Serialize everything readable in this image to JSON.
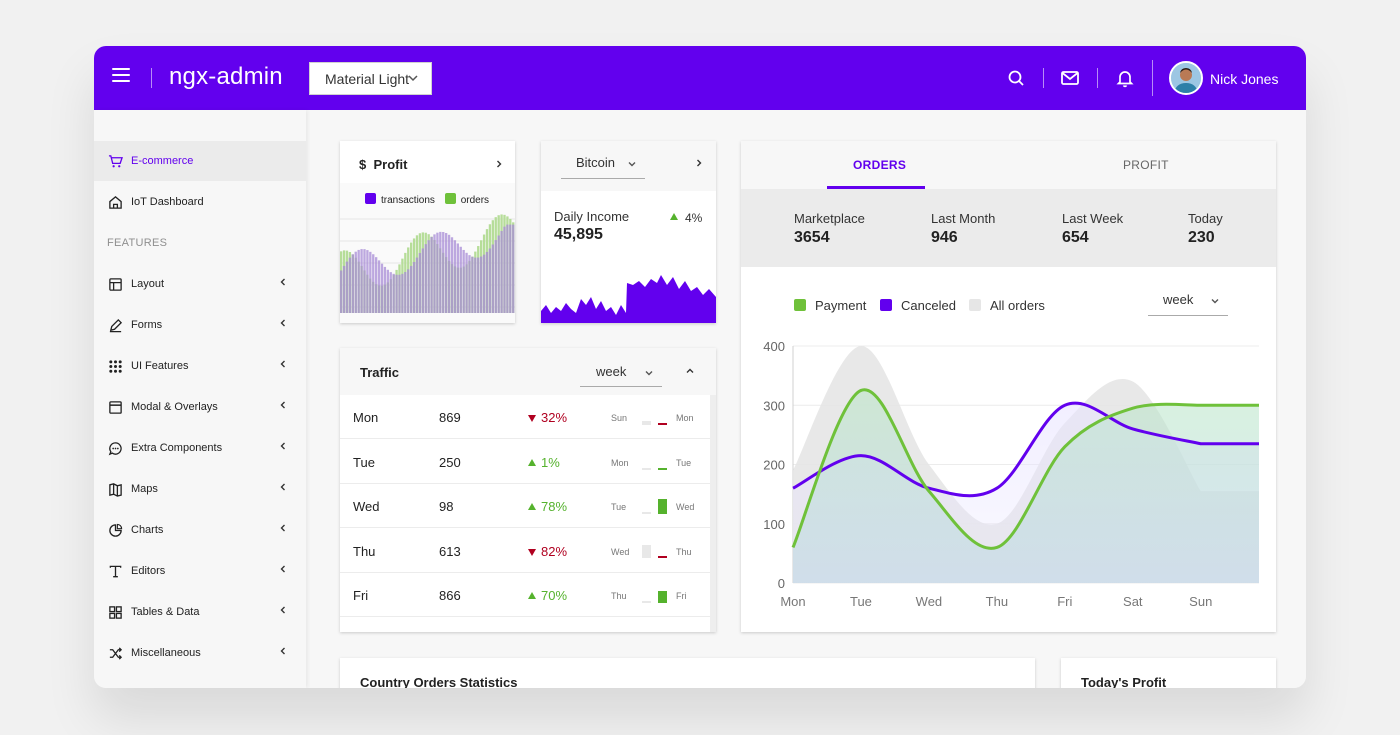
{
  "header": {
    "app_title": "ngx-admin",
    "theme_select_value": "Material Light",
    "user_name": "Nick Jones"
  },
  "sidebar": {
    "section_header": "FEATURES",
    "items": [
      {
        "label": "E-commerce",
        "icon": "cart-icon"
      },
      {
        "label": "IoT Dashboard",
        "icon": "home-icon"
      },
      {
        "label": "Layout",
        "icon": "layout-icon"
      },
      {
        "label": "Forms",
        "icon": "edit-icon"
      },
      {
        "label": "UI Features",
        "icon": "grid-icon"
      },
      {
        "label": "Modal & Overlays",
        "icon": "browser-icon"
      },
      {
        "label": "Extra Components",
        "icon": "message-circle-icon"
      },
      {
        "label": "Maps",
        "icon": "map-icon"
      },
      {
        "label": "Charts",
        "icon": "pie-chart-icon"
      },
      {
        "label": "Editors",
        "icon": "text-icon"
      },
      {
        "label": "Tables & Data",
        "icon": "table-icon"
      },
      {
        "label": "Miscellaneous",
        "icon": "shuffle-icon"
      }
    ]
  },
  "profit_card": {
    "currency_symbol": "$",
    "title": "Profit",
    "legend": [
      {
        "name": "transactions",
        "color": "#6200ee"
      },
      {
        "name": "orders",
        "color": "#6fc13a"
      }
    ]
  },
  "bitcoin_card": {
    "select_value": "Bitcoin",
    "income_label": "Daily Income",
    "income_value": "45,895",
    "change": "4%"
  },
  "traffic_card": {
    "title": "Traffic",
    "period": "week",
    "rows": [
      {
        "day": "Mon",
        "value": "869",
        "delta": "32%",
        "trend": "down",
        "prev": "Sun",
        "curr": "Mon",
        "level_prev": 0.25,
        "level_curr": 0.15
      },
      {
        "day": "Tue",
        "value": "250",
        "delta": "1%",
        "trend": "up",
        "prev": "Mon",
        "curr": "Tue",
        "level_prev": 0.1,
        "level_curr": 0.12
      },
      {
        "day": "Wed",
        "value": "98",
        "delta": "78%",
        "trend": "up",
        "prev": "Tue",
        "curr": "Wed",
        "level_prev": 0.15,
        "level_curr": 0.95
      },
      {
        "day": "Thu",
        "value": "613",
        "delta": "82%",
        "trend": "down",
        "prev": "Wed",
        "curr": "Thu",
        "level_prev": 0.85,
        "level_curr": 0.15
      },
      {
        "day": "Fri",
        "value": "866",
        "delta": "70%",
        "trend": "up",
        "prev": "Thu",
        "curr": "Fri",
        "level_prev": 0.15,
        "level_curr": 0.75
      }
    ]
  },
  "orders_card": {
    "tabs": [
      "ORDERS",
      "PROFIT"
    ],
    "active_tab": "ORDERS",
    "stats": [
      {
        "label": "Marketplace",
        "value": "3654"
      },
      {
        "label": "Last Month",
        "value": "946"
      },
      {
        "label": "Last Week",
        "value": "654"
      },
      {
        "label": "Today",
        "value": "230"
      }
    ],
    "period": "week"
  },
  "bottom_cards": {
    "country_title": "Country Orders Statistics",
    "today_title": "Today's Profit"
  },
  "colors": {
    "accent": "#6200ee",
    "green": "#6fc13a",
    "red": "#b00020"
  },
  "chart_data": [
    {
      "type": "line",
      "x": [
        "Mon",
        "Tue",
        "Wed",
        "Thu",
        "Fri",
        "Sat",
        "Sun"
      ],
      "ylim": [
        0,
        400
      ],
      "yticks": [
        0,
        100,
        200,
        300,
        400
      ],
      "series": [
        {
          "name": "Payment",
          "color": "#6fc13a",
          "values": [
            60,
            325,
            155,
            60,
            230,
            295,
            300
          ]
        },
        {
          "name": "Canceled",
          "color": "#6200ee",
          "values": [
            160,
            215,
            160,
            160,
            300,
            260,
            235
          ]
        },
        {
          "name": "All orders",
          "color": "#e6e6e6",
          "values": [
            190,
            400,
            200,
            100,
            270,
            340,
            155
          ]
        }
      ]
    }
  ]
}
